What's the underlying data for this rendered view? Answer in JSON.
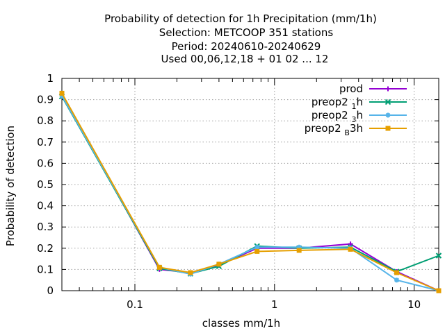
{
  "chart_data": {
    "type": "line",
    "title_lines": [
      "Probability of detection  for 1h Precipitation (mm/1h)",
      "Selection: METCOOP    351 stations",
      "Period: 20240610-20240629",
      "Used  00,06,12,18 + 01 02 ... 12"
    ],
    "xlabel": "classes mm/1h",
    "ylabel": "Probability of detection",
    "xscale": "log",
    "xlim": [
      0.03,
      15
    ],
    "ylim": [
      0,
      1
    ],
    "x_ticks": [
      {
        "value": 0.1,
        "label": "0.1"
      },
      {
        "value": 1,
        "label": "1"
      },
      {
        "value": 10,
        "label": "10"
      }
    ],
    "y_ticks": [
      {
        "value": 0,
        "label": "0"
      },
      {
        "value": 0.1,
        "label": "0.1"
      },
      {
        "value": 0.2,
        "label": "0.2"
      },
      {
        "value": 0.3,
        "label": "0.3"
      },
      {
        "value": 0.4,
        "label": "0.4"
      },
      {
        "value": 0.5,
        "label": "0.5"
      },
      {
        "value": 0.6,
        "label": "0.6"
      },
      {
        "value": 0.7,
        "label": "0.7"
      },
      {
        "value": 0.8,
        "label": "0.8"
      },
      {
        "value": 0.9,
        "label": "0.9"
      },
      {
        "value": 1,
        "label": "1"
      }
    ],
    "grid": true,
    "legend_position": "top-right",
    "series": [
      {
        "name": "prod",
        "color": "#9400d3",
        "marker": "plus",
        "x": [
          0.03,
          0.15,
          0.25,
          0.4,
          0.75,
          1.5,
          3.5,
          7.5,
          15
        ],
        "y": [
          0.925,
          0.1,
          0.085,
          0.12,
          0.2,
          0.2,
          0.22,
          0.09,
          0.0
        ]
      },
      {
        "name": "preop2",
        "sub": "1",
        "suffix": "h",
        "color": "#009e73",
        "marker": "cross",
        "x": [
          0.03,
          0.15,
          0.25,
          0.4,
          0.75,
          1.5,
          3.5,
          7.5,
          15
        ],
        "y": [
          0.915,
          0.105,
          0.08,
          0.115,
          0.21,
          0.2,
          0.205,
          0.09,
          0.165
        ]
      },
      {
        "name": "preop2",
        "sub": "3",
        "suffix": "h",
        "color": "#56b4e9",
        "marker": "star",
        "x": [
          0.03,
          0.15,
          0.25,
          0.4,
          0.75,
          1.5,
          3.5,
          7.5,
          15
        ],
        "y": [
          0.918,
          0.11,
          0.078,
          0.125,
          0.205,
          0.205,
          0.2,
          0.05,
          0.0
        ]
      },
      {
        "name": "preop2",
        "sub": "B",
        "suffix": "3h",
        "color": "#e69f00",
        "marker": "square",
        "x": [
          0.03,
          0.15,
          0.25,
          0.4,
          0.75,
          1.5,
          3.5,
          7.5,
          15
        ],
        "y": [
          0.93,
          0.11,
          0.085,
          0.125,
          0.185,
          0.19,
          0.195,
          0.085,
          0.0
        ]
      }
    ]
  }
}
